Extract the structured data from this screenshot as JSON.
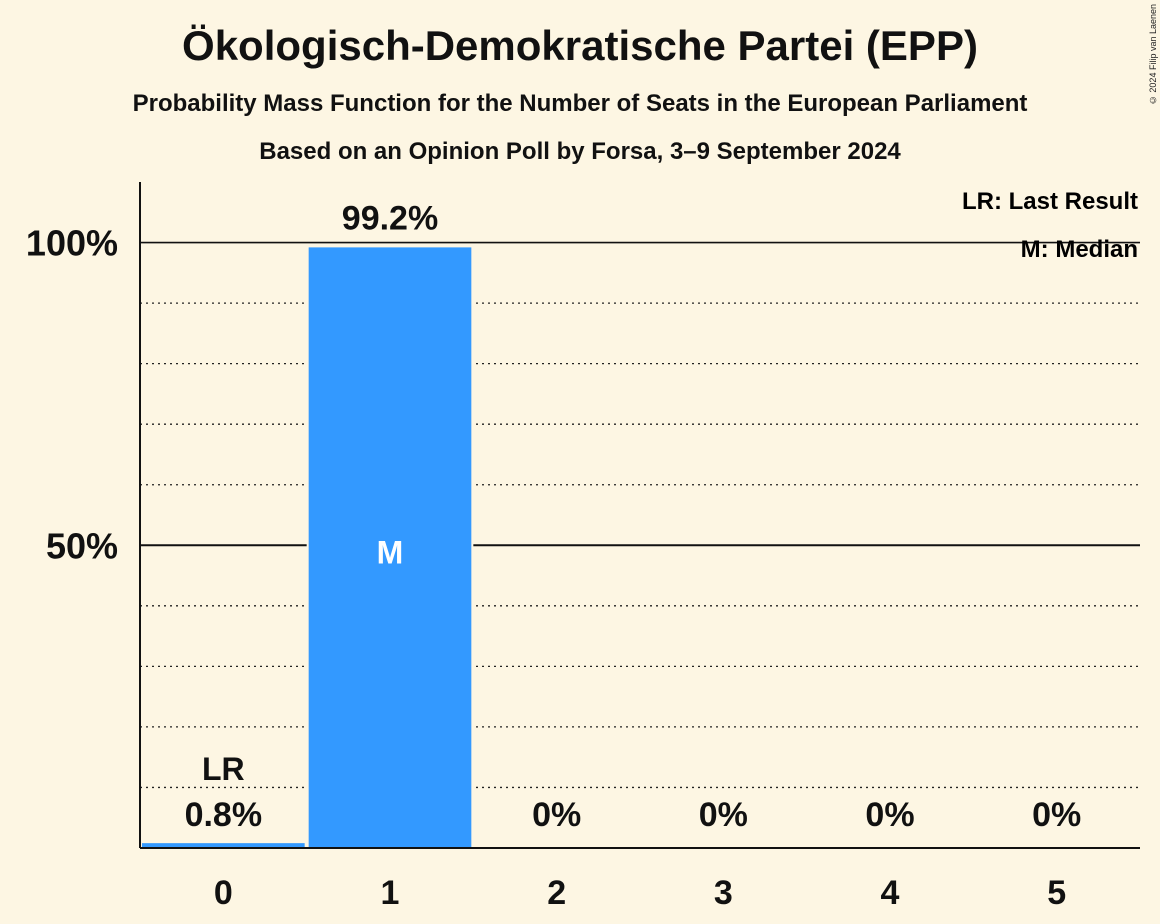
{
  "title": "Ökologisch-Demokratische Partei (EPP)",
  "subtitle": "Probability Mass Function for the Number of Seats in the European Parliament",
  "source": "Based on an Opinion Poll by Forsa, 3–9 September 2024",
  "copyright": "© 2024 Filip van Laenen",
  "legend": {
    "last_result": "LR: Last Result",
    "median": "M: Median"
  },
  "colors": {
    "background": "#fdf6e3",
    "bar": "#3399ff",
    "text": "#111111"
  },
  "chart_data": {
    "type": "bar",
    "categories": [
      "0",
      "1",
      "2",
      "3",
      "4",
      "5"
    ],
    "values": [
      0.8,
      99.2,
      0,
      0,
      0,
      0
    ],
    "value_labels": [
      "0.8%",
      "99.2%",
      "0%",
      "0%",
      "0%",
      "0%"
    ],
    "ylim": [
      0,
      110
    ],
    "yticks": [
      {
        "value": 50,
        "label": "50%"
      },
      {
        "value": 100,
        "label": "100%"
      }
    ],
    "grid_minor_step": 10,
    "last_result_index": 0,
    "last_result_label": "LR",
    "median_index": 1,
    "median_label": "M",
    "legend_position": "top-right"
  }
}
